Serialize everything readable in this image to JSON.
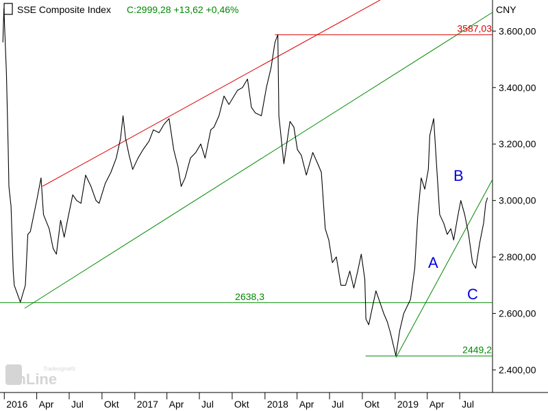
{
  "chart_data": {
    "type": "line",
    "title": "SSE Composite Index",
    "quote": "C:2999,28 +13,62 +0,46%",
    "currency": "CNY",
    "y_ticks": [
      "3.600,00",
      "3.400,00",
      "3.200,00",
      "3.000,00",
      "2.800,00",
      "2.600,00",
      "2.400,00"
    ],
    "y_tick_values": [
      3600,
      3400,
      3200,
      3000,
      2800,
      2600,
      2400
    ],
    "ylim": [
      2320,
      3710
    ],
    "x_labels": [
      "2016",
      "Apr",
      "Jul",
      "Okt",
      "2017",
      "Apr",
      "Jul",
      "Okt",
      "2018",
      "Apr",
      "Jul",
      "Okt",
      "2019",
      "Apr",
      "Jul"
    ],
    "x_label_dates": [
      "2016-01",
      "2016-04",
      "2016-07",
      "2016-10",
      "2017-01",
      "2017-04",
      "2017-07",
      "2017-10",
      "2018-01",
      "2018-04",
      "2018-07",
      "2018-10",
      "2019-01",
      "2019-04",
      "2019-07"
    ],
    "series": [
      {
        "dates": [
          "2015-12-28",
          "2015-12-31",
          "2016-01-07",
          "2016-01-12",
          "2016-01-14",
          "2016-01-20",
          "2016-01-26",
          "2016-01-29",
          "2016-02-15",
          "2016-02-29",
          "2016-03-07",
          "2016-03-14",
          "2016-04-01",
          "2016-04-13",
          "2016-04-20",
          "2016-05-06",
          "2016-05-17",
          "2016-05-26",
          "2016-06-07",
          "2016-06-17",
          "2016-06-28",
          "2016-07-11",
          "2016-07-22",
          "2016-08-03",
          "2016-08-16",
          "2016-08-31",
          "2016-09-14",
          "2016-09-23",
          "2016-10-10",
          "2016-10-26",
          "2016-11-10",
          "2016-11-22",
          "2016-11-29",
          "2016-12-06",
          "2016-12-16",
          "2016-12-26",
          "2017-01-10",
          "2017-01-24",
          "2017-02-10",
          "2017-02-22",
          "2017-03-10",
          "2017-03-24",
          "2017-04-07",
          "2017-04-20",
          "2017-05-02",
          "2017-05-11",
          "2017-05-22",
          "2017-06-06",
          "2017-06-21",
          "2017-07-05",
          "2017-07-17",
          "2017-08-02",
          "2017-08-11",
          "2017-08-25",
          "2017-09-08",
          "2017-09-22",
          "2017-10-16",
          "2017-10-30",
          "2017-11-13",
          "2017-11-24",
          "2017-12-05",
          "2017-12-22",
          "2018-01-05",
          "2018-01-18",
          "2018-01-29",
          "2018-02-06",
          "2018-02-09",
          "2018-02-23",
          "2018-03-12",
          "2018-03-23",
          "2018-04-02",
          "2018-04-13",
          "2018-04-27",
          "2018-05-15",
          "2018-05-29",
          "2018-06-08",
          "2018-06-19",
          "2018-06-29",
          "2018-07-09",
          "2018-07-20",
          "2018-08-02",
          "2018-08-15",
          "2018-08-27",
          "2018-09-07",
          "2018-09-18",
          "2018-09-28",
          "2018-10-08",
          "2018-10-11",
          "2018-10-19",
          "2018-10-29",
          "2018-11-08",
          "2018-11-19",
          "2018-11-30",
          "2018-12-10",
          "2018-12-19",
          "2019-01-03",
          "2019-01-14",
          "2019-01-25",
          "2019-02-13",
          "2019-02-25",
          "2019-03-05",
          "2019-03-15",
          "2019-03-25",
          "2019-04-04",
          "2019-04-08",
          "2019-04-19",
          "2019-04-26",
          "2019-05-06",
          "2019-05-17",
          "2019-05-27",
          "2019-06-06",
          "2019-06-14",
          "2019-06-25",
          "2019-07-04",
          "2019-07-15",
          "2019-07-26",
          "2019-08-06",
          "2019-08-15",
          "2019-08-26",
          "2019-09-06",
          "2019-09-12",
          "2019-09-17"
        ],
        "values": [
          3560,
          3680,
          3450,
          3180,
          3050,
          2980,
          2750,
          2700,
          2640,
          2700,
          2880,
          2890,
          3000,
          3080,
          2950,
          2900,
          2830,
          2810,
          2930,
          2870,
          2940,
          3020,
          3000,
          2990,
          3090,
          3050,
          3000,
          2990,
          3060,
          3100,
          3150,
          3220,
          3300,
          3220,
          3160,
          3110,
          3150,
          3180,
          3210,
          3250,
          3240,
          3270,
          3290,
          3180,
          3120,
          3050,
          3080,
          3150,
          3170,
          3200,
          3150,
          3250,
          3260,
          3300,
          3370,
          3340,
          3390,
          3400,
          3430,
          3330,
          3310,
          3300,
          3400,
          3470,
          3560,
          3587,
          3300,
          3130,
          3280,
          3260,
          3180,
          3160,
          3090,
          3170,
          3130,
          3100,
          2900,
          2860,
          2780,
          2800,
          2700,
          2700,
          2750,
          2690,
          2750,
          2810,
          2720,
          2580,
          2560,
          2620,
          2680,
          2640,
          2600,
          2570,
          2530,
          2450,
          2540,
          2600,
          2650,
          2760,
          2940,
          3080,
          3040,
          3110,
          3230,
          3290,
          3150,
          2950,
          2920,
          2880,
          2900,
          2860,
          2940,
          3000,
          2950,
          2880,
          2780,
          2760,
          2850,
          2920,
          2990,
          3010
        ]
      }
    ],
    "levels": [
      {
        "label": "3587,03",
        "value": 3587.03,
        "color": "#dd0000"
      },
      {
        "label": "2638,3",
        "value": 2638.3,
        "color": "#008800"
      },
      {
        "label": "2449,2",
        "value": 2449.2,
        "color": "#008800"
      }
    ],
    "wave_labels": [
      "A",
      "B",
      "C"
    ],
    "logo": {
      "brand_small": "Tradesignal®",
      "brand_main": "onLine"
    },
    "colors": {
      "background": "#ffffff",
      "price": "#000000",
      "resistance": "#dd0000",
      "support": "#008800",
      "waves": "#0000dd"
    }
  }
}
